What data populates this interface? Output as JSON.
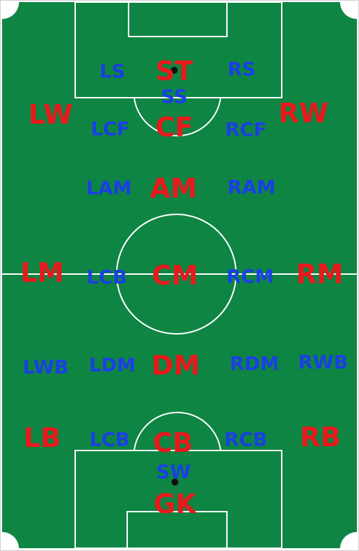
{
  "colors": {
    "pitch": "#0e8543",
    "lines": "#ffffff",
    "major_role": "#e8191c",
    "minor_role": "#1a3fe6",
    "spot": "#111111"
  },
  "positions": {
    "ST": "ST",
    "SS": "SS",
    "LS": "LS",
    "RS": "RS",
    "LW": "LW",
    "RW": "RW",
    "LCF": "LCF",
    "CF": "CF",
    "RCF": "RCF",
    "LAM": "LAM",
    "AM": "AM",
    "RAM": "RAM",
    "LM": "LM",
    "LCB_mid": "LCB",
    "CM": "CM",
    "RCM": "RCM",
    "RM": "RM",
    "LWB": "LWB",
    "LDM": "LDM",
    "DM": "DM",
    "RDM": "RDM",
    "RWB": "RWB",
    "LB": "LB",
    "LCB": "LCB",
    "CB": "CB",
    "RCB": "RCB",
    "RB": "RB",
    "SW": "SW",
    "GK": "GK"
  }
}
